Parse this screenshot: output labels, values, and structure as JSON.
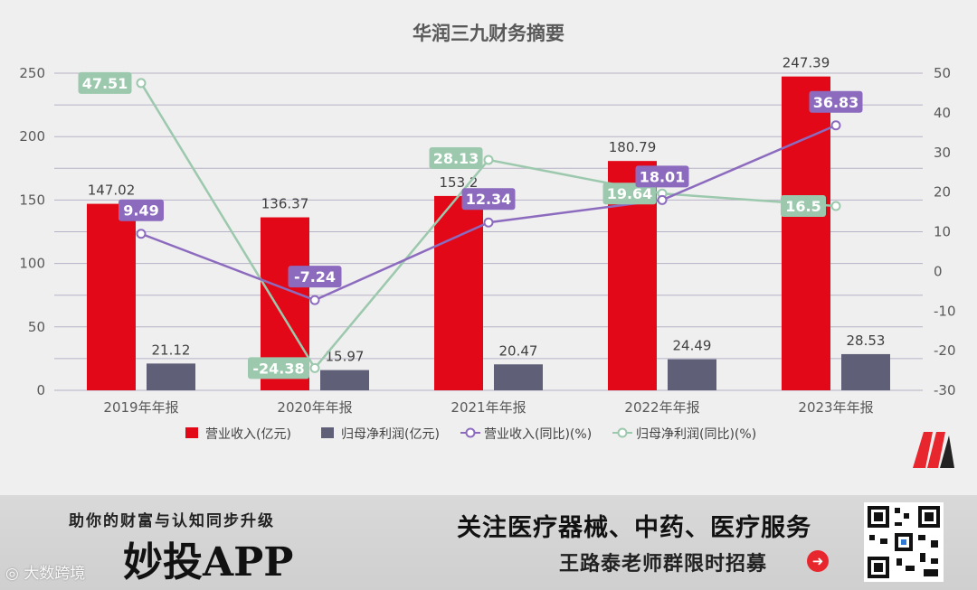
{
  "chart_data": {
    "type": "bar",
    "title": "华润三九财务摘要",
    "categories": [
      "2019年年报",
      "2020年年报",
      "2021年年报",
      "2022年年报",
      "2023年年报"
    ],
    "left_axis": {
      "ylim": [
        0,
        250
      ],
      "ticks": [
        "0",
        "50",
        "100",
        "150",
        "200",
        "250"
      ]
    },
    "right_axis": {
      "ylim": [
        -30,
        50
      ],
      "ticks": [
        "-30",
        "-20",
        "-10",
        "0",
        "10",
        "20",
        "30",
        "40",
        "50"
      ]
    },
    "series": [
      {
        "name": "营业收入(亿元)",
        "type": "bar",
        "axis": "left",
        "color": "#e20818",
        "values": [
          147.02,
          136.37,
          153.2,
          180.79,
          247.39
        ],
        "labels": [
          "147.02",
          "136.37",
          "153.2",
          "180.79",
          "247.39"
        ]
      },
      {
        "name": "归母净利润(亿元)",
        "type": "bar",
        "axis": "left",
        "color": "#5f5f78",
        "values": [
          21.12,
          15.97,
          20.47,
          24.49,
          28.53
        ],
        "labels": [
          "21.12",
          "15.97",
          "20.47",
          "24.49",
          "28.53"
        ]
      },
      {
        "name": "营业收入(同比)(%)",
        "type": "line",
        "axis": "right",
        "color": "#8c6bbf",
        "values": [
          9.49,
          -7.24,
          12.34,
          18.01,
          36.83
        ],
        "labels": [
          "9.49",
          "-7.24",
          "12.34",
          "18.01",
          "36.83"
        ]
      },
      {
        "name": "归母净利润(同比)(%)",
        "type": "line",
        "axis": "right",
        "color": "#9cc9ad",
        "values": [
          47.51,
          -24.38,
          28.13,
          19.64,
          16.5
        ],
        "labels": [
          "47.51",
          "-24.38",
          "28.13",
          "19.64",
          "16.5"
        ]
      }
    ],
    "legend_position": "bottom",
    "grid": true
  },
  "banner": {
    "slogan": "助你的财富与认知同步升级",
    "app_name": "妙投APP",
    "headline": "关注医疗器械、中药、医疗服务",
    "subline": "王路泰老师群限时招募",
    "watermark": "大数跨境"
  },
  "colors": {
    "background": "#efefef",
    "grid": "#b8b2c6",
    "axis_text": "#595959"
  }
}
